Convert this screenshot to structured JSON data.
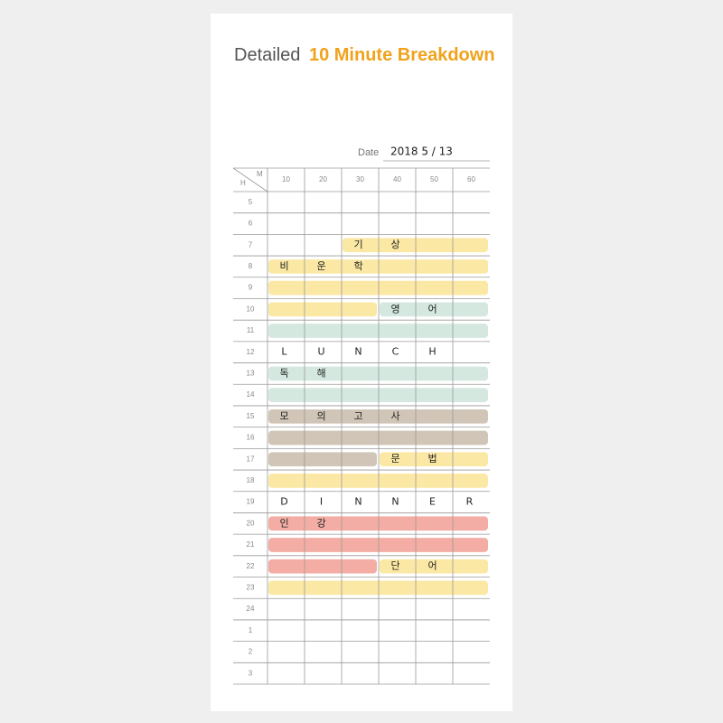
{
  "header": {
    "title_prefix": "Detailed",
    "title_highlight": "10 Minute Breakdown"
  },
  "date": {
    "label": "Date",
    "value": "2018  5 / 13"
  },
  "table": {
    "hour_header": "H",
    "minute_header": "M",
    "minutes": [
      "10",
      "20",
      "30",
      "40",
      "50",
      "60"
    ],
    "rows": [
      {
        "hour": "5"
      },
      {
        "hour": "6"
      },
      {
        "hour": "7",
        "entries": [
          null,
          null,
          "기",
          "상",
          null,
          null
        ]
      },
      {
        "hour": "8",
        "entries": [
          "비",
          "운",
          "학",
          null,
          null,
          null
        ]
      },
      {
        "hour": "9"
      },
      {
        "hour": "10",
        "entries": [
          null,
          null,
          null,
          "영",
          "어",
          null
        ]
      },
      {
        "hour": "11"
      },
      {
        "hour": "12",
        "entries": [
          "L",
          "U",
          "N",
          "C",
          "H",
          null
        ]
      },
      {
        "hour": "13",
        "entries": [
          "독",
          "해",
          null,
          null,
          null,
          null
        ]
      },
      {
        "hour": "14"
      },
      {
        "hour": "15",
        "entries": [
          "모",
          "의",
          "고",
          "사",
          null,
          null
        ]
      },
      {
        "hour": "16"
      },
      {
        "hour": "17",
        "entries": [
          null,
          null,
          null,
          "문",
          "법",
          null
        ]
      },
      {
        "hour": "18"
      },
      {
        "hour": "19",
        "entries": [
          "D",
          "I",
          "N",
          "N",
          "E",
          "R"
        ]
      },
      {
        "hour": "20",
        "entries": [
          "인",
          "강",
          null,
          null,
          null,
          null
        ]
      },
      {
        "hour": "21"
      },
      {
        "hour": "22",
        "entries": [
          null,
          null,
          null,
          "단",
          "어",
          null
        ]
      },
      {
        "hour": "23"
      },
      {
        "hour": "24"
      },
      {
        "hour": "1"
      },
      {
        "hour": "2"
      },
      {
        "hour": "3"
      }
    ]
  }
}
